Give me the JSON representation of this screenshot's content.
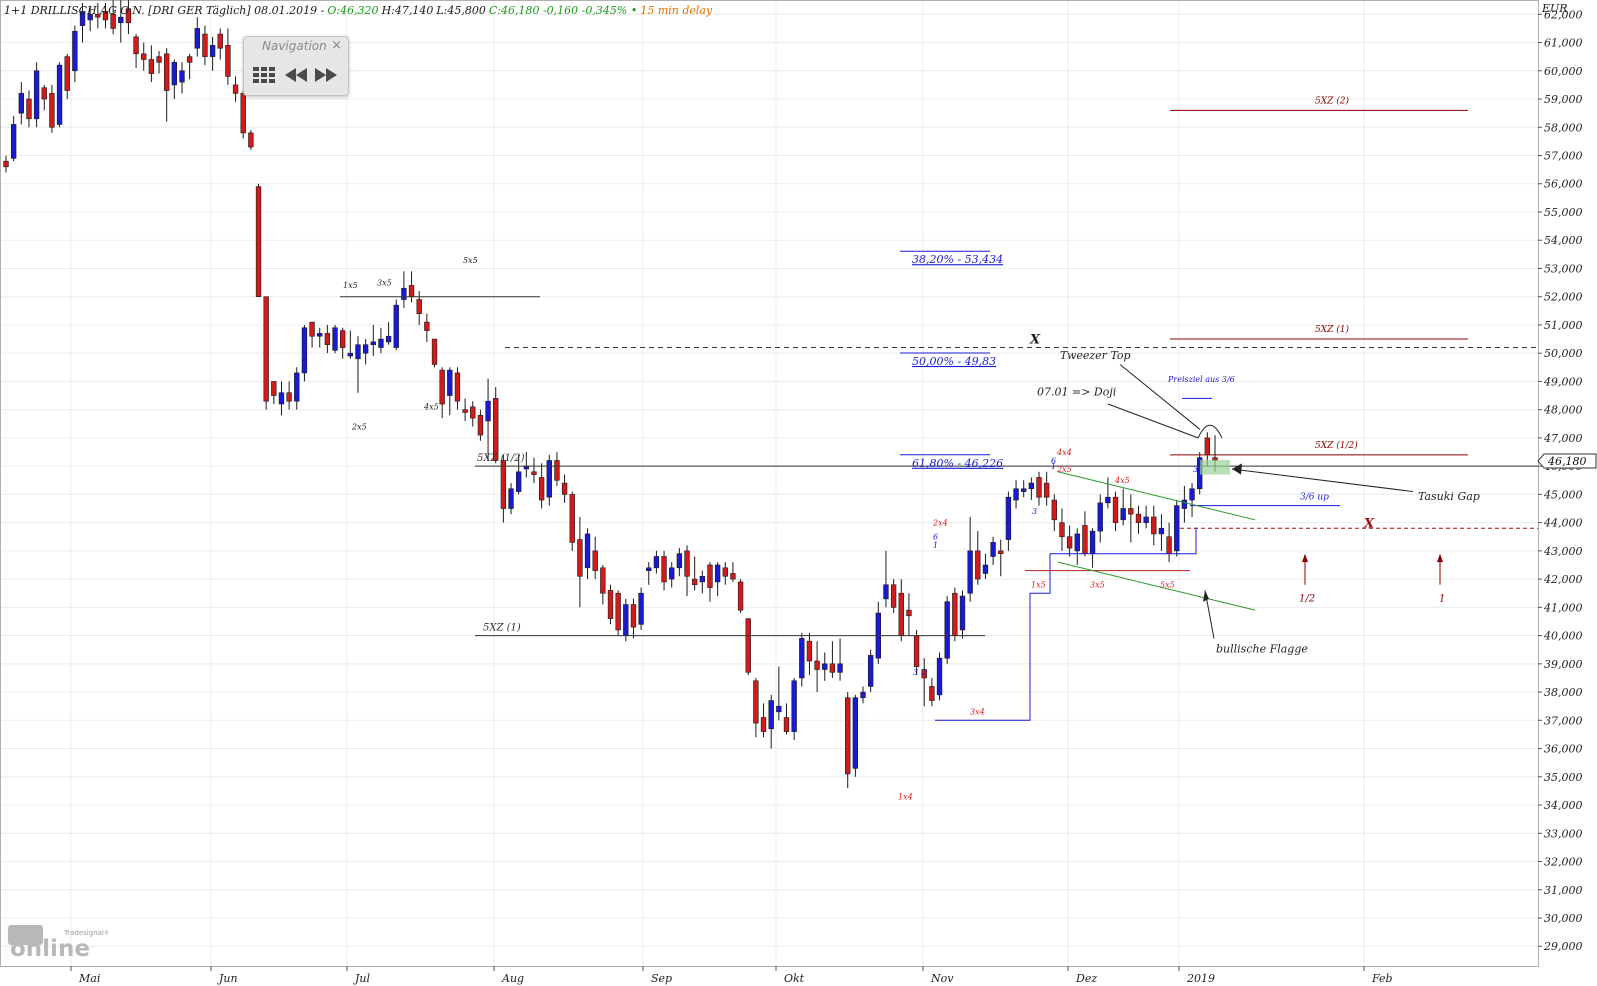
{
  "header": {
    "instrument": "1+1 DRILLISCH AG O.N. [DRI GER Täglich] 08.01.2019 -",
    "open": "O:46,320",
    "high": "H:47,140",
    "low": "L:45,800",
    "close_change": "C:46,180 -0,160 -0,345% •",
    "delay": "15 min delay"
  },
  "navigation": {
    "title": "Navigation",
    "close_glyph": "×"
  },
  "logo": {
    "brand": "Tradesignal®",
    "name": "online"
  },
  "colors": {
    "up_candle": "#1a1ad6",
    "down_candle": "#d31a1a",
    "header_green": "#1a9a1a",
    "header_orange": "#e07000",
    "fib_blue": "#1a1ad6",
    "target_red": "#8b0000",
    "flag_green": "#2a9a2a"
  },
  "chart_data": {
    "type": "candlestick",
    "currency_label": "EUR",
    "ylim": [
      28.3,
      62.4
    ],
    "y_ticks": [
      "29,000",
      "30,000",
      "31,000",
      "32,000",
      "33,000",
      "34,000",
      "35,000",
      "36,000",
      "37,000",
      "38,000",
      "39,000",
      "40,000",
      "41,000",
      "42,000",
      "43,000",
      "44,000",
      "45,000",
      "46,000",
      "47,000",
      "48,000",
      "49,000",
      "50,000",
      "51,000",
      "52,000",
      "53,000",
      "54,000",
      "55,000",
      "56,000",
      "57,000",
      "58,000",
      "59,000",
      "60,000",
      "61,000",
      "62,000"
    ],
    "x_labels": [
      "Mai",
      "Jun",
      "Jul",
      "Aug",
      "Sep",
      "Okt",
      "Nov",
      "Dez",
      "2019",
      "Feb"
    ],
    "current_price": "46,180",
    "grid": true,
    "candles": [
      [
        56.8,
        57.0,
        56.4,
        56.6
      ],
      [
        56.9,
        58.4,
        56.8,
        58.1
      ],
      [
        58.5,
        59.6,
        58.1,
        59.2
      ],
      [
        59.0,
        59.3,
        58.0,
        58.3
      ],
      [
        58.3,
        60.3,
        58.0,
        60.0
      ],
      [
        59.4,
        59.5,
        58.6,
        59.0
      ],
      [
        59.2,
        59.5,
        57.8,
        58.0
      ],
      [
        58.1,
        60.3,
        58.0,
        60.2
      ],
      [
        60.5,
        60.6,
        59.0,
        59.3
      ],
      [
        60.0,
        61.6,
        59.6,
        61.4
      ],
      [
        61.6,
        62.4,
        61.0,
        62.1
      ],
      [
        61.8,
        62.3,
        61.4,
        62.0
      ],
      [
        62.0,
        62.4,
        61.5,
        61.9
      ],
      [
        62.1,
        62.4,
        61.5,
        61.8
      ],
      [
        62.0,
        62.5,
        61.3,
        61.5
      ],
      [
        61.7,
        62.5,
        61.0,
        61.9
      ],
      [
        62.2,
        62.5,
        61.3,
        61.7
      ],
      [
        61.2,
        61.3,
        60.1,
        60.6
      ],
      [
        60.6,
        61.0,
        60.0,
        60.4
      ],
      [
        60.4,
        60.9,
        59.6,
        59.9
      ],
      [
        60.5,
        60.7,
        59.9,
        60.3
      ],
      [
        60.6,
        60.8,
        58.2,
        59.3
      ],
      [
        59.5,
        60.4,
        59.0,
        60.3
      ],
      [
        59.6,
        60.3,
        59.2,
        60.0
      ],
      [
        60.5,
        60.6,
        59.7,
        60.3
      ],
      [
        60.8,
        61.9,
        60.5,
        61.5
      ],
      [
        61.3,
        61.6,
        60.2,
        60.5
      ],
      [
        60.5,
        61.2,
        60.0,
        60.9
      ],
      [
        61.3,
        61.5,
        60.4,
        60.8
      ],
      [
        60.9,
        61.5,
        59.5,
        59.8
      ],
      [
        59.5,
        59.8,
        58.9,
        59.2
      ],
      [
        59.2,
        59.3,
        57.6,
        57.8
      ],
      [
        57.8,
        57.9,
        57.2,
        57.3
      ],
      [
        55.9,
        56.0,
        52.0,
        52.0
      ],
      [
        52.0,
        52.0,
        48.0,
        48.3
      ],
      [
        49.0,
        49.0,
        48.2,
        48.5
      ],
      [
        48.2,
        49.0,
        47.8,
        48.6
      ],
      [
        48.6,
        49.0,
        48.0,
        48.3
      ],
      [
        48.3,
        49.5,
        48.0,
        49.3
      ],
      [
        49.3,
        51.0,
        49.0,
        50.9
      ],
      [
        51.1,
        51.1,
        50.2,
        50.6
      ],
      [
        50.6,
        50.9,
        50.2,
        50.7
      ],
      [
        50.7,
        51.0,
        50.0,
        50.3
      ],
      [
        50.1,
        51.0,
        50.0,
        50.9
      ],
      [
        50.8,
        50.9,
        49.8,
        50.2
      ],
      [
        49.9,
        50.8,
        49.8,
        50.0
      ],
      [
        49.8,
        50.6,
        48.6,
        50.3
      ],
      [
        50.0,
        50.5,
        49.6,
        50.3
      ],
      [
        50.3,
        51.0,
        49.9,
        50.4
      ],
      [
        50.2,
        50.9,
        50.0,
        50.5
      ],
      [
        50.4,
        51.1,
        50.3,
        50.6
      ],
      [
        50.2,
        51.9,
        50.1,
        51.7
      ],
      [
        51.9,
        52.9,
        51.6,
        52.3
      ],
      [
        52.4,
        52.9,
        51.8,
        52.0
      ],
      [
        51.9,
        52.2,
        51.0,
        51.4
      ],
      [
        51.1,
        51.4,
        50.4,
        50.8
      ],
      [
        50.5,
        50.5,
        49.5,
        49.6
      ],
      [
        49.4,
        49.5,
        47.7,
        48.2
      ],
      [
        48.5,
        49.5,
        47.8,
        49.4
      ],
      [
        49.3,
        49.5,
        48.0,
        48.3
      ],
      [
        48.0,
        48.4,
        47.6,
        47.9
      ],
      [
        48.1,
        48.3,
        47.4,
        47.7
      ],
      [
        47.8,
        48.0,
        46.9,
        47.1
      ],
      [
        47.6,
        49.1,
        46.2,
        48.3
      ],
      [
        48.4,
        48.8,
        46.1,
        46.2
      ],
      [
        46.2,
        46.4,
        44.0,
        44.5
      ],
      [
        44.5,
        45.4,
        44.3,
        45.2
      ],
      [
        45.1,
        46.4,
        45.0,
        45.8
      ],
      [
        45.9,
        46.5,
        45.6,
        46.0
      ],
      [
        45.8,
        46.3,
        45.4,
        45.7
      ],
      [
        45.6,
        46.1,
        44.5,
        44.8
      ],
      [
        44.9,
        46.4,
        44.6,
        46.2
      ],
      [
        46.2,
        46.5,
        45.3,
        45.5
      ],
      [
        45.4,
        45.7,
        44.7,
        45.0
      ],
      [
        45.0,
        45.1,
        43.0,
        43.3
      ],
      [
        43.4,
        44.2,
        41.0,
        42.1
      ],
      [
        42.4,
        43.8,
        42.0,
        43.6
      ],
      [
        43.0,
        43.5,
        42.0,
        42.3
      ],
      [
        42.4,
        42.5,
        41.1,
        41.5
      ],
      [
        41.6,
        41.8,
        40.4,
        40.6
      ],
      [
        41.5,
        41.6,
        40.0,
        40.2
      ],
      [
        40.0,
        41.3,
        39.8,
        41.1
      ],
      [
        41.1,
        41.3,
        39.9,
        40.3
      ],
      [
        40.4,
        41.7,
        40.2,
        41.5
      ],
      [
        42.3,
        42.6,
        41.8,
        42.4
      ],
      [
        42.4,
        43.0,
        42.2,
        42.8
      ],
      [
        42.8,
        43.0,
        41.6,
        41.9
      ],
      [
        42.0,
        42.6,
        41.7,
        42.4
      ],
      [
        42.4,
        43.1,
        42.1,
        42.9
      ],
      [
        43.0,
        43.2,
        41.4,
        42.1
      ],
      [
        42.0,
        42.8,
        41.6,
        41.8
      ],
      [
        41.9,
        42.3,
        41.5,
        42.1
      ],
      [
        42.5,
        42.6,
        41.2,
        41.7
      ],
      [
        41.9,
        42.6,
        41.4,
        42.5
      ],
      [
        42.4,
        42.6,
        41.8,
        42.1
      ],
      [
        42.2,
        42.6,
        41.9,
        42.0
      ],
      [
        41.9,
        42.0,
        40.8,
        40.9
      ],
      [
        40.6,
        40.6,
        38.6,
        38.7
      ],
      [
        38.4,
        38.5,
        36.4,
        36.9
      ],
      [
        37.1,
        37.6,
        36.4,
        36.6
      ],
      [
        36.7,
        37.9,
        36.0,
        37.7
      ],
      [
        37.3,
        38.9,
        37.0,
        37.5
      ],
      [
        37.1,
        37.6,
        36.5,
        36.6
      ],
      [
        36.6,
        38.5,
        36.3,
        38.4
      ],
      [
        38.5,
        40.1,
        38.2,
        39.9
      ],
      [
        39.8,
        40.1,
        38.6,
        39.1
      ],
      [
        39.1,
        39.8,
        38.0,
        38.8
      ],
      [
        38.8,
        39.4,
        38.4,
        39.0
      ],
      [
        39.0,
        39.8,
        38.5,
        38.7
      ],
      [
        38.7,
        39.9,
        38.4,
        39.0
      ],
      [
        37.8,
        38.0,
        34.6,
        35.1
      ],
      [
        35.3,
        37.9,
        35.0,
        37.8
      ],
      [
        37.8,
        38.2,
        37.6,
        38.0
      ],
      [
        38.2,
        39.5,
        38.0,
        39.3
      ],
      [
        39.2,
        41.2,
        39.0,
        40.8
      ],
      [
        41.3,
        43.0,
        41.0,
        41.8
      ],
      [
        41.8,
        42.0,
        40.8,
        41.0
      ],
      [
        41.5,
        42.0,
        39.8,
        40.0
      ],
      [
        40.9,
        41.5,
        40.0,
        40.7
      ],
      [
        40.0,
        40.2,
        38.6,
        38.9
      ],
      [
        38.8,
        39.2,
        37.5,
        38.5
      ],
      [
        38.2,
        38.5,
        37.5,
        37.7
      ],
      [
        37.9,
        39.4,
        37.7,
        39.2
      ],
      [
        39.2,
        41.4,
        39.0,
        41.2
      ],
      [
        41.5,
        41.7,
        39.8,
        40.0
      ],
      [
        40.2,
        41.6,
        39.9,
        41.4
      ],
      [
        41.5,
        44.2,
        41.2,
        43.0
      ],
      [
        43.0,
        43.7,
        41.8,
        42.0
      ],
      [
        42.2,
        42.9,
        42.0,
        42.5
      ],
      [
        42.8,
        43.5,
        42.5,
        43.3
      ],
      [
        43.0,
        43.4,
        42.1,
        42.9
      ],
      [
        43.4,
        45.1,
        43.0,
        44.9
      ],
      [
        44.8,
        45.5,
        44.5,
        45.2
      ],
      [
        45.1,
        45.5,
        44.9,
        45.2
      ],
      [
        45.2,
        45.6,
        44.8,
        45.4
      ],
      [
        45.6,
        45.8,
        44.6,
        44.9
      ],
      [
        45.4,
        45.8,
        44.6,
        44.9
      ],
      [
        44.8,
        45.0,
        43.7,
        44.1
      ],
      [
        44.0,
        44.5,
        43.0,
        43.5
      ],
      [
        43.5,
        43.9,
        42.8,
        43.1
      ],
      [
        43.0,
        43.8,
        42.5,
        43.6
      ],
      [
        43.9,
        44.4,
        42.8,
        42.9
      ],
      [
        42.9,
        43.8,
        42.4,
        43.7
      ],
      [
        43.7,
        45.0,
        43.3,
        44.7
      ],
      [
        44.7,
        45.6,
        44.5,
        44.9
      ],
      [
        44.9,
        45.1,
        43.7,
        44.0
      ],
      [
        44.1,
        45.2,
        43.9,
        44.5
      ],
      [
        44.5,
        45.0,
        43.3,
        44.3
      ],
      [
        44.3,
        44.6,
        43.6,
        44.0
      ],
      [
        44.0,
        44.6,
        43.8,
        44.2
      ],
      [
        44.2,
        44.6,
        43.2,
        43.6
      ],
      [
        43.6,
        44.3,
        43.0,
        43.8
      ],
      [
        43.5,
        44.0,
        42.6,
        42.9
      ],
      [
        43.0,
        44.8,
        42.8,
        44.6
      ],
      [
        44.5,
        45.3,
        44.0,
        44.8
      ],
      [
        44.8,
        45.4,
        44.2,
        45.2
      ],
      [
        45.2,
        46.5,
        45.0,
        46.3
      ],
      [
        47.0,
        47.2,
        46.0,
        46.4
      ],
      [
        46.3,
        47.1,
        45.8,
        46.2
      ]
    ],
    "horizontal_levels": [
      {
        "label": "5XZ (1/2)",
        "value": 46.0
      },
      {
        "label": "5XZ (1)",
        "value": 40.0
      },
      {
        "label": "",
        "value": 52.0
      }
    ],
    "fibonacci": [
      {
        "label": "38,20% - 53,434",
        "value": 53.434
      },
      {
        "label": "50,00% - 49,83",
        "value": 49.83
      },
      {
        "label": "61,80% - 46,226",
        "value": 46.226
      }
    ],
    "targets": [
      {
        "label": "5XZ (2)",
        "value": 58.6
      },
      {
        "label": "5XZ (1)",
        "value": 50.5
      },
      {
        "label": "5XZ (1/2)",
        "value": 46.4
      }
    ],
    "annotations": {
      "candle_counts": [
        "1x5",
        "3x5",
        "5x5",
        "2x5",
        "4x5",
        "2x4",
        "6",
        "1",
        "3",
        "2",
        "1x4",
        "3x4",
        "4x4",
        "6",
        "1",
        "2x5",
        "3",
        "4x5",
        "1x5",
        "3x5",
        "5x5",
        "3"
      ],
      "tweezer_top": "Tweezer Top",
      "doji": "07.01 => Doji",
      "preisziel": "Preisziel aus 3/6",
      "tasuki_gap": "Tasuki Gap",
      "up_label": "3/6 up",
      "flag": "bullische Flagge",
      "x_mark": "X",
      "x_mark_red": "X",
      "arrow_half": "1/2",
      "arrow_one": "1"
    }
  }
}
